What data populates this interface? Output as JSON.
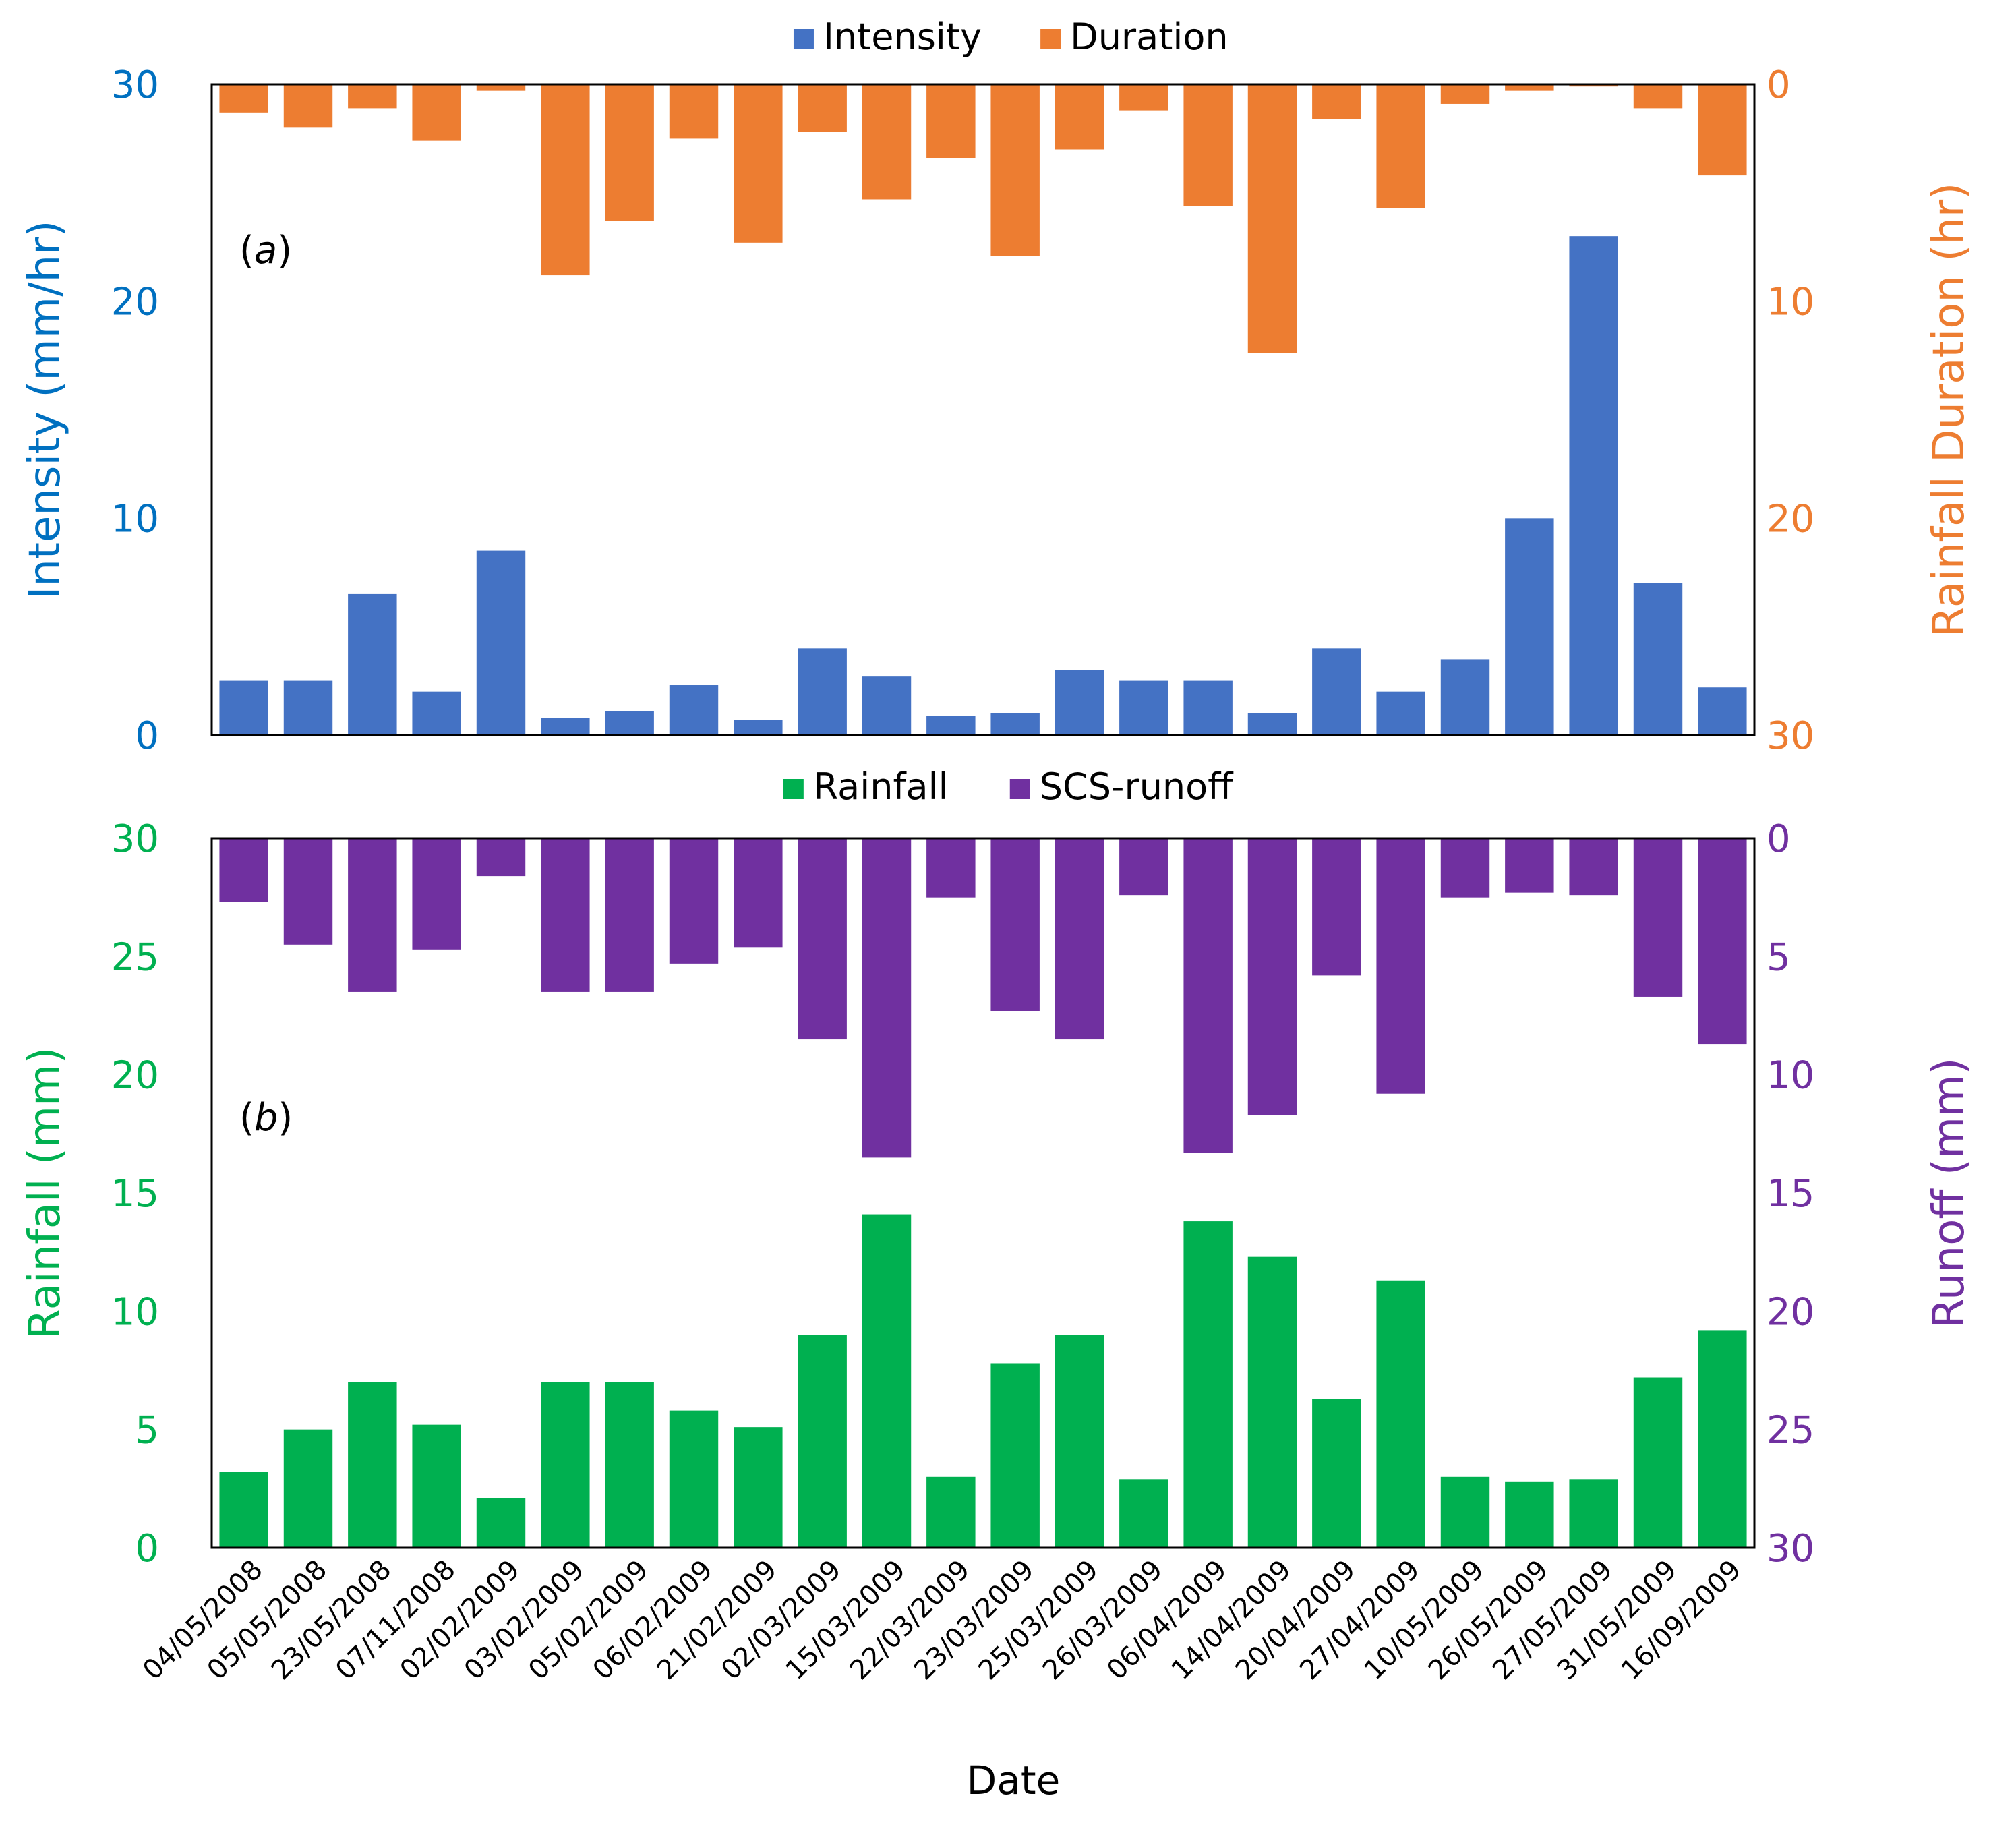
{
  "dates": [
    "04/05/2008",
    "05/05/2008",
    "23/05/2008",
    "07/11/2008",
    "02/02/2009",
    "03/02/2009",
    "05/02/2009",
    "06/02/2009",
    "21/02/2009",
    "02/03/2009",
    "15/03/2009",
    "22/03/2009",
    "23/03/2009",
    "25/03/2009",
    "26/03/2009",
    "06/04/2009",
    "14/04/2009",
    "20/04/2009",
    "27/04/2009",
    "10/05/2009",
    "26/05/2009",
    "27/05/2009",
    "31/05/2009",
    "16/09/2009"
  ],
  "xlabel": "Date",
  "chart_data": [
    {
      "type": "bar",
      "panel_label": "a",
      "legend": {
        "position": "top-center",
        "entries": [
          "Intensity",
          "Duration"
        ]
      },
      "left_axis": {
        "label": "Intensity (mm/hr)",
        "range": [
          0,
          30
        ],
        "ticks": [
          "0",
          "10",
          "20",
          "30"
        ],
        "color": "#0070C0"
      },
      "right_axis": {
        "label": "Rainfall Duration (hr)",
        "range": [
          0,
          30
        ],
        "inverted": true,
        "ticks": [
          "0",
          "10",
          "20",
          "30"
        ],
        "color": "#ED7D31"
      },
      "series": [
        {
          "name": "Intensity",
          "axis": "left",
          "color": "#4472C4",
          "values": [
            2.5,
            2.5,
            6.5,
            2.0,
            8.5,
            0.8,
            1.1,
            2.3,
            0.7,
            4.0,
            2.7,
            0.9,
            1.0,
            3.0,
            2.5,
            2.5,
            1.0,
            4.0,
            2.0,
            3.5,
            10.0,
            23.0,
            7.0,
            2.2
          ]
        },
        {
          "name": "Duration",
          "axis": "right",
          "color": "#ED7D31",
          "values": [
            1.3,
            2.0,
            1.1,
            2.6,
            0.3,
            8.8,
            6.3,
            2.5,
            7.3,
            2.2,
            5.3,
            3.4,
            7.9,
            3.0,
            1.2,
            5.6,
            12.4,
            1.6,
            5.7,
            0.9,
            0.3,
            0.1,
            1.1,
            4.2
          ]
        }
      ]
    },
    {
      "type": "bar",
      "panel_label": "b",
      "legend": {
        "position": "top-center",
        "entries": [
          "Rainfall",
          "SCS-runoff"
        ]
      },
      "left_axis": {
        "label": "Rainfall (mm)",
        "range": [
          0,
          30
        ],
        "ticks": [
          "0",
          "5",
          "10",
          "15",
          "20",
          "25",
          "30"
        ],
        "color": "#00B050"
      },
      "right_axis": {
        "label": "Runoff (mm)",
        "range": [
          0,
          30
        ],
        "inverted": true,
        "ticks": [
          "0",
          "5",
          "10",
          "15",
          "20",
          "25",
          "30"
        ],
        "color": "#7030A0"
      },
      "series": [
        {
          "name": "Rainfall",
          "axis": "left",
          "color": "#00B050",
          "values": [
            3.2,
            5.0,
            7.0,
            5.2,
            2.1,
            7.0,
            7.0,
            5.8,
            5.1,
            9.0,
            14.1,
            3.0,
            7.8,
            9.0,
            2.9,
            13.8,
            12.3,
            6.3,
            11.3,
            3.0,
            2.8,
            2.9,
            7.2,
            9.2
          ]
        },
        {
          "name": "SCS-runoff",
          "axis": "right",
          "color": "#7030A0",
          "values": [
            2.7,
            4.5,
            6.5,
            4.7,
            1.6,
            6.5,
            6.5,
            5.3,
            4.6,
            8.5,
            13.5,
            2.5,
            7.3,
            8.5,
            2.4,
            13.3,
            11.7,
            5.8,
            10.8,
            2.5,
            2.3,
            2.4,
            6.7,
            8.7
          ]
        }
      ]
    }
  ]
}
